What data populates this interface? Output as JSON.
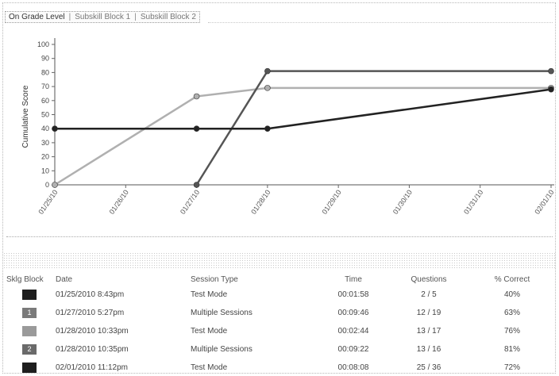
{
  "tabs": [
    {
      "label": "On Grade Level",
      "active": true
    },
    {
      "label": "Subskill Block 1",
      "active": false
    },
    {
      "label": "Subskill Block 2",
      "active": false
    }
  ],
  "tab_separator": "|",
  "chart_data": {
    "type": "line",
    "title": "",
    "xlabel": "",
    "ylabel": "Cumulative Score",
    "ylim": [
      0,
      100
    ],
    "yticks": [
      0,
      10,
      20,
      30,
      40,
      50,
      60,
      70,
      80,
      90,
      100
    ],
    "categories": [
      "01/25/10",
      "01/26/10",
      "01/27/10",
      "01/28/10",
      "01/29/10",
      "01/30/10",
      "01/31/10",
      "02/01/10"
    ],
    "grid": false,
    "series": [
      {
        "color": "#b0b0b0",
        "points": [
          [
            0,
            0
          ],
          [
            2,
            63
          ],
          [
            3,
            69
          ],
          [
            7,
            69
          ]
        ]
      },
      {
        "color": "#555555",
        "points": [
          [
            2,
            0
          ],
          [
            3,
            81
          ],
          [
            7,
            81
          ]
        ]
      },
      {
        "color": "#222222",
        "points": [
          [
            0,
            40
          ],
          [
            2,
            40
          ],
          [
            3,
            40
          ],
          [
            7,
            68
          ]
        ]
      }
    ]
  },
  "table": {
    "headers": {
      "block": "Sklg Block",
      "date": "Date",
      "type": "Session Type",
      "time": "Time",
      "questions": "Questions",
      "pct": "% Correct"
    },
    "rows": [
      {
        "block_label": "",
        "block_color": "#1e1e1e",
        "date": "01/25/2010 8:43pm",
        "type": "Test Mode",
        "time": "00:01:58",
        "questions": "2 / 5",
        "pct": "40%"
      },
      {
        "block_label": "1",
        "block_color": "#7a7a7a",
        "date": "01/27/2010 5:27pm",
        "type": "Multiple Sessions",
        "time": "00:09:46",
        "questions": "12 / 19",
        "pct": "63%"
      },
      {
        "block_label": "",
        "block_color": "#9a9a9a",
        "date": "01/28/2010 10:33pm",
        "type": "Test Mode",
        "time": "00:02:44",
        "questions": "13 / 17",
        "pct": "76%"
      },
      {
        "block_label": "2",
        "block_color": "#6a6a6a",
        "date": "01/28/2010 10:35pm",
        "type": "Multiple Sessions",
        "time": "00:09:22",
        "questions": "13 / 16",
        "pct": "81%"
      },
      {
        "block_label": "",
        "block_color": "#1e1e1e",
        "date": "02/01/2010 11:12pm",
        "type": "Test Mode",
        "time": "00:08:08",
        "questions": "25 / 36",
        "pct": "72%"
      }
    ]
  }
}
